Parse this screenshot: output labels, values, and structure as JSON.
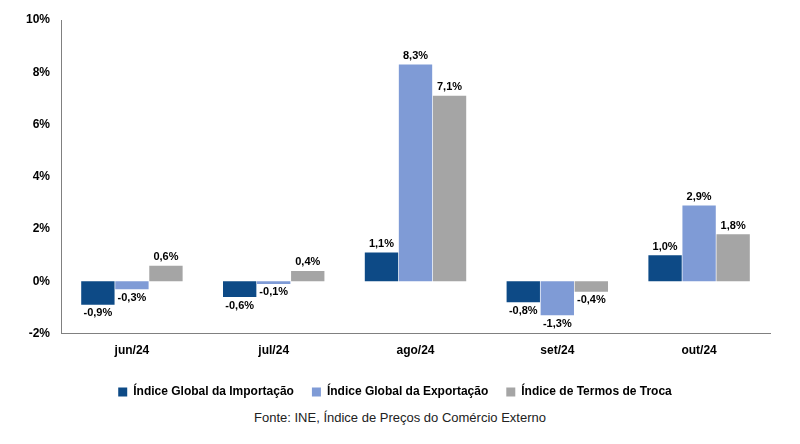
{
  "chart_data": {
    "type": "bar",
    "categories": [
      "jun/24",
      "jul/24",
      "ago/24",
      "set/24",
      "out/24"
    ],
    "series": [
      {
        "name": "Índice Global da Importação",
        "color": "#0d4a86",
        "values": [
          -0.9,
          -0.6,
          1.1,
          -0.8,
          1.0
        ],
        "value_labels": [
          "-0,9%",
          "-0,6%",
          "1,1%",
          "-0,8%",
          "1,0%"
        ]
      },
      {
        "name": "Índice Global da Exportação",
        "color": "#7f9bd6",
        "values": [
          -0.3,
          -0.1,
          8.3,
          -1.3,
          2.9
        ],
        "value_labels": [
          "-0,3%",
          "-0,1%",
          "8,3%",
          "-1,3%",
          "2,9%"
        ]
      },
      {
        "name": "Índice de Termos de Troca",
        "color": "#a5a5a5",
        "values": [
          0.6,
          0.4,
          7.1,
          -0.4,
          1.8
        ],
        "value_labels": [
          "0,6%",
          "0,4%",
          "7,1%",
          "-0,4%",
          "1,8%"
        ]
      }
    ],
    "ylim": [
      -2,
      10
    ],
    "yticks": [
      {
        "value": -2,
        "label": "-2%"
      },
      {
        "value": 0,
        "label": "0%"
      },
      {
        "value": 2,
        "label": "2%"
      },
      {
        "value": 4,
        "label": "4%"
      },
      {
        "value": 6,
        "label": "6%"
      },
      {
        "value": 8,
        "label": "8%"
      },
      {
        "value": 10,
        "label": "10%"
      }
    ],
    "grid": false,
    "legend": "bottom",
    "data_labels": true,
    "annotations": [
      "Fonte: INE, Índice de Preços do Comércio Externo"
    ]
  }
}
